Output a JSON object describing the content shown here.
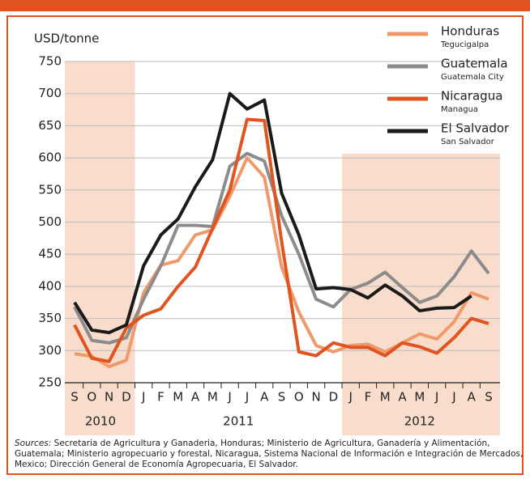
{
  "chart_data": {
    "type": "line",
    "y_label": "USD/tonne",
    "categories": [
      "S",
      "O",
      "N",
      "D",
      "J",
      "F",
      "M",
      "A",
      "M",
      "J",
      "J",
      "A",
      "S",
      "O",
      "N",
      "D",
      "J",
      "F",
      "M",
      "A",
      "M",
      "J",
      "J",
      "A",
      "S"
    ],
    "years": [
      "2010",
      "2011",
      "2012"
    ],
    "ylim": [
      250,
      750
    ],
    "yticks": [
      250,
      300,
      350,
      400,
      450,
      500,
      550,
      600,
      650,
      700,
      750
    ],
    "grid": true,
    "series": [
      {
        "name": "Honduras",
        "city": "Tegucigalpa",
        "color": "#f0996b",
        "values": [
          295,
          291,
          275,
          285,
          390,
          433,
          440,
          480,
          488,
          540,
          600,
          570,
          430,
          360,
          308,
          298,
          308,
          310,
          298,
          312,
          326,
          318,
          345,
          390,
          380
        ]
      },
      {
        "name": "Guatemala",
        "city": "Guatemala City",
        "color": "#8c8c8c",
        "values": [
          368,
          316,
          312,
          320,
          380,
          432,
          495,
          495,
          493,
          587,
          607,
          595,
          510,
          450,
          380,
          368,
          395,
          405,
          422,
          398,
          375,
          385,
          415,
          455,
          420
        ]
      },
      {
        "name": "Nicaragua",
        "city": "Managua",
        "color": "#e0541f",
        "values": [
          340,
          288,
          283,
          335,
          355,
          365,
          400,
          430,
          490,
          550,
          660,
          658,
          470,
          298,
          292,
          312,
          305,
          305,
          292,
          312,
          306,
          296,
          320,
          350,
          342
        ]
      },
      {
        "name": "El Salvador",
        "city": "San Salvador",
        "color": "#1a1a1a",
        "values": [
          375,
          332,
          328,
          340,
          432,
          480,
          505,
          555,
          597,
          700,
          676,
          690,
          545,
          480,
          396,
          398,
          395,
          382,
          402,
          385,
          362,
          366,
          367,
          385,
          null
        ]
      }
    ]
  },
  "source_label": "Sources:",
  "source_text": "Secretaria de Agricultura y Ganaderia, Honduras; Ministerio de Agricultura, Ganadería y Alimentación, Guatemala; Ministerio agropecuario y forestal, Nicaragua, Sistema Nacional de Información e Integración de Mercados, Mexico; Dirección General de Economía Agropecuaria, El Salvador."
}
